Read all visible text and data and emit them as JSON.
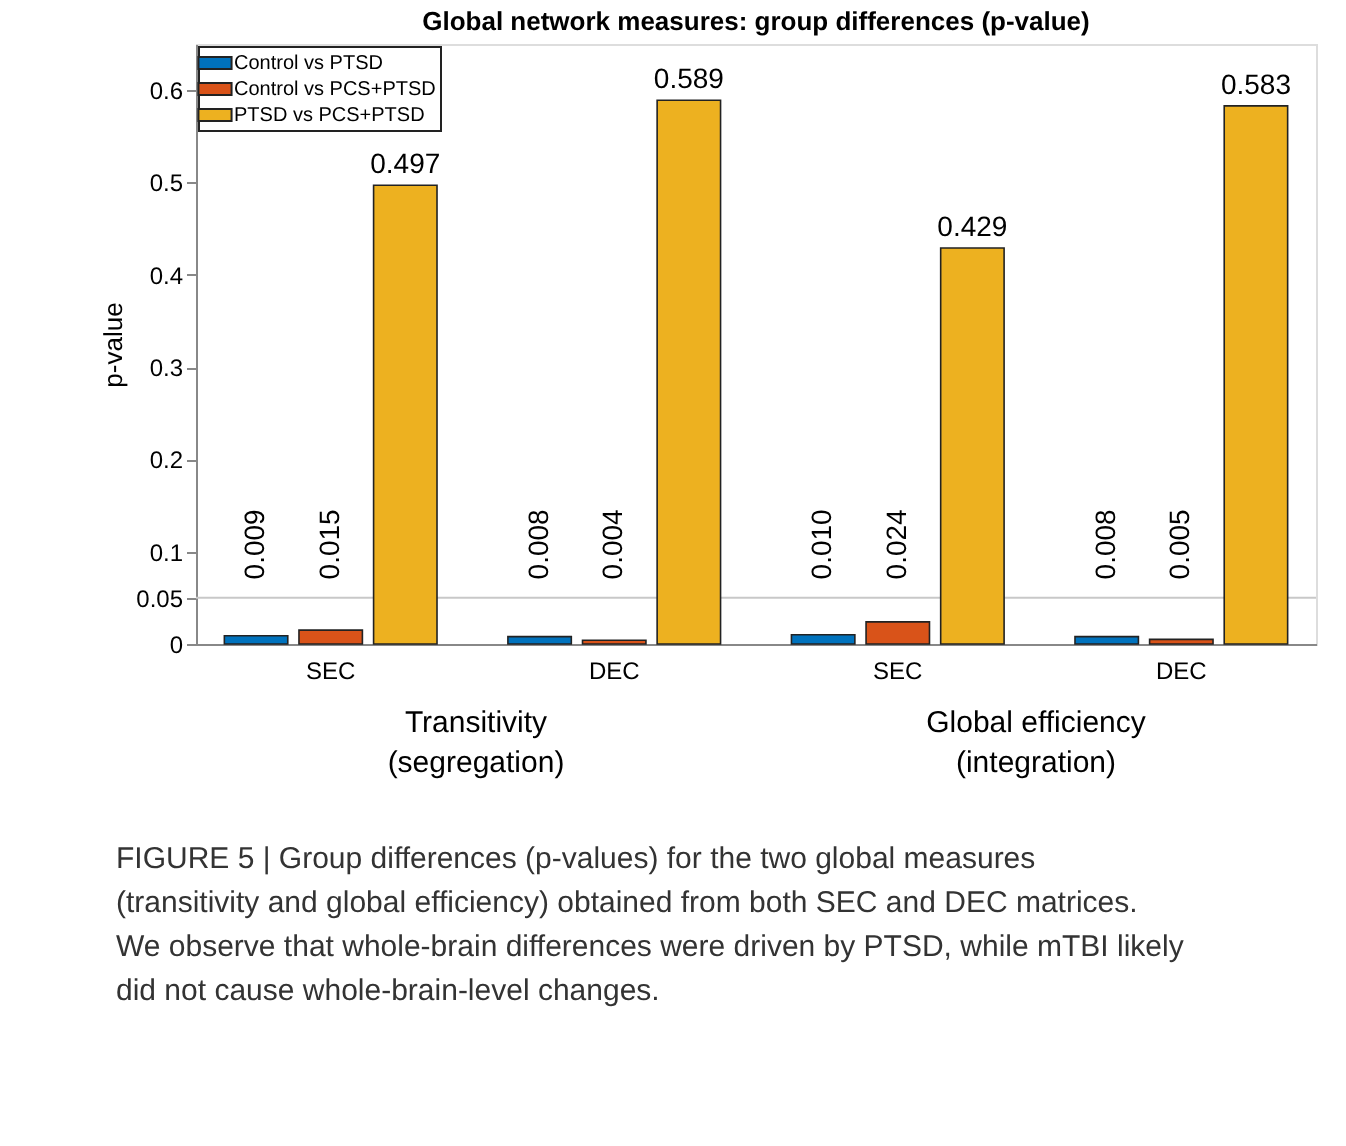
{
  "chart_data": {
    "type": "bar",
    "title": "Global network measures: group differences (p-value)",
    "ylabel": "p-value",
    "categories": [
      "SEC",
      "DEC",
      "SEC",
      "DEC"
    ],
    "series": [
      {
        "name": "Control vs PTSD",
        "color": "#0072bd",
        "values": [
          0.009,
          0.008,
          0.01,
          0.008
        ],
        "value_labels": [
          "0.009",
          "0.008",
          "0.010",
          "0.008"
        ]
      },
      {
        "name": "Control vs PCS+PTSD",
        "color": "#d95319",
        "values": [
          0.015,
          0.004,
          0.024,
          0.005
        ],
        "value_labels": [
          "0.015",
          "0.004",
          "0.024",
          "0.005"
        ]
      },
      {
        "name": "PTSD vs PCS+PTSD",
        "color": "#edb120",
        "values": [
          0.497,
          0.589,
          0.429,
          0.583
        ],
        "value_labels": [
          "0.497",
          "0.589",
          "0.429",
          "0.583"
        ]
      }
    ],
    "ylim": [
      0,
      0.65
    ],
    "yticks": [
      0,
      0.05,
      0.1,
      0.2,
      0.3,
      0.4,
      0.5,
      0.6
    ],
    "ref_lines": [
      {
        "axis": "y",
        "value": 0.05,
        "color": "#c8c8c8"
      }
    ],
    "legend": "top left",
    "grid": false,
    "annotations": [
      "Transitivity\n(segregation)",
      "Global efficiency\n(integration)",
      "FIGURE 5 | Group differences (p-values) for the two global measures (transitivity and global efficiency) obtained from both SEC and DEC matrices. We observe that whole-brain differences were driven by PTSD, while mTBI likely did not cause whole-brain-level changes."
    ]
  }
}
